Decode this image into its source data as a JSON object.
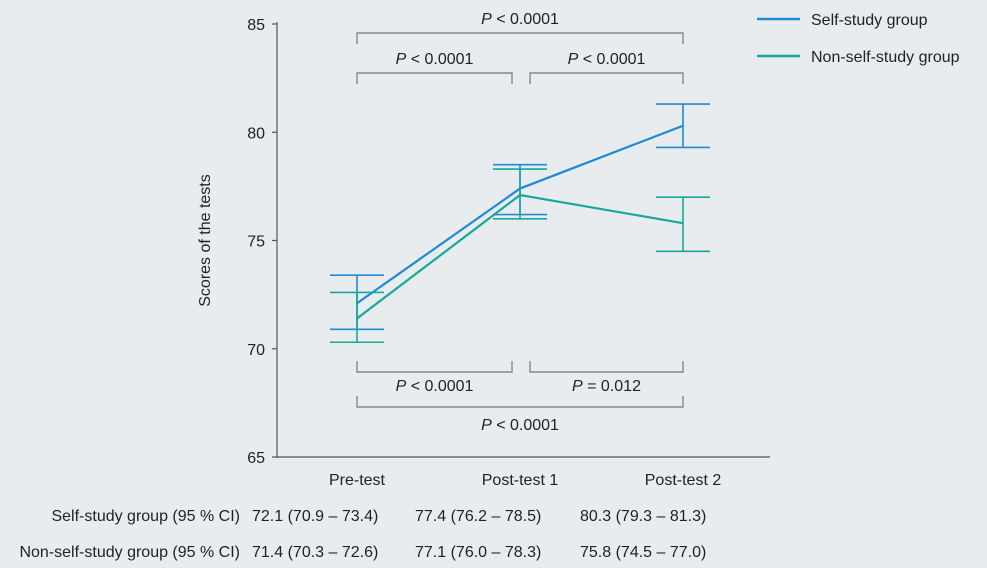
{
  "chart_data": {
    "type": "line",
    "categories": [
      "Pre-test",
      "Post-test 1",
      "Post-test 2"
    ],
    "ylabel": "Scores of the tests",
    "xlabel": "",
    "ylim": [
      65,
      85
    ],
    "yticks": [
      65,
      70,
      75,
      80,
      85
    ],
    "grid": false,
    "legend_position": "top-right",
    "series": [
      {
        "name": "Self-study group",
        "color": "#1f8ad6",
        "values": [
          72.1,
          77.4,
          80.3
        ],
        "ci_lower": [
          70.9,
          76.2,
          79.3
        ],
        "ci_upper": [
          73.4,
          78.5,
          81.3
        ]
      },
      {
        "name": "Non-self-study group",
        "color": "#17a89a",
        "values": [
          71.4,
          77.1,
          75.8
        ],
        "ci_lower": [
          70.3,
          76.0,
          74.5
        ],
        "ci_upper": [
          72.6,
          78.3,
          77.0
        ]
      }
    ],
    "annotations": {
      "top": [
        {
          "from": 0,
          "to": 2,
          "label_italic": "P",
          "label_rest": " < 0.0001"
        },
        {
          "from": 0,
          "to": 1,
          "label_italic": "P",
          "label_rest": " < 0.0001"
        },
        {
          "from": 1,
          "to": 2,
          "label_italic": "P",
          "label_rest": " < 0.0001"
        }
      ],
      "bottom": [
        {
          "from": 0,
          "to": 1,
          "label_italic": "P",
          "label_rest": " < 0.0001"
        },
        {
          "from": 1,
          "to": 2,
          "label_italic": "P",
          "label_rest": " = 0.012"
        },
        {
          "from": 0,
          "to": 2,
          "label_italic": "P",
          "label_rest": " < 0.0001"
        }
      ]
    }
  },
  "table": {
    "rows": [
      {
        "label": "Self-study group (95 % CI)",
        "cells": [
          "72.1 (70.9 – 73.4)",
          "77.4 (76.2 – 78.5)",
          "80.3 (79.3 – 81.3)"
        ]
      },
      {
        "label": "Non-self-study group (95 % CI)",
        "cells": [
          "71.4 (70.3 – 72.6)",
          "77.1 (76.0 – 78.3)",
          "75.8 (74.5 – 77.0)"
        ]
      }
    ]
  }
}
